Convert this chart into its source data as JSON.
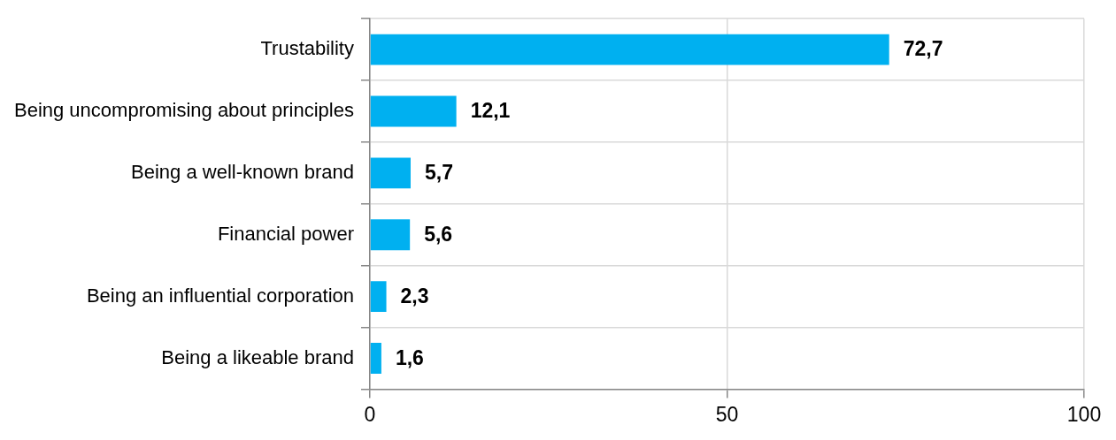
{
  "chart_data": {
    "type": "bar",
    "orientation": "horizontal",
    "categories": [
      "Trustability",
      "Being uncompromising about principles",
      "Being a well-known brand",
      "Financial power",
      "Being an influential corporation",
      "Being a likeable brand"
    ],
    "values": [
      72.7,
      12.1,
      5.7,
      5.6,
      2.3,
      1.6
    ],
    "value_labels": [
      "72,7",
      "12,1",
      "5,7",
      "5,6",
      "2,3",
      "1,6"
    ],
    "color": "#00b0f0",
    "xlim": [
      0,
      100
    ],
    "xticks": [
      0,
      50,
      100
    ],
    "grid": true,
    "legend": false
  }
}
